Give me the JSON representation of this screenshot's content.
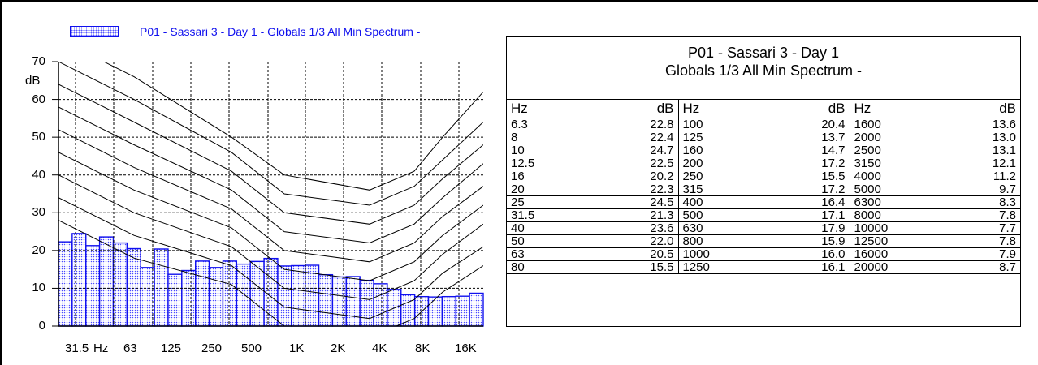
{
  "legend": {
    "label": "P01 - Sassari 3 - Day 1 - Globals 1/3 All Min Spectrum -"
  },
  "y_unit": "dB",
  "table": {
    "title_line1": "P01 - Sassari 3 - Day 1",
    "title_line2": "Globals 1/3 All Min Spectrum -",
    "headers": [
      "Hz",
      "dB",
      "Hz",
      "dB",
      "Hz",
      "dB"
    ],
    "rows": [
      [
        "6.3",
        "22.8",
        "100",
        "20.4",
        "1600",
        "13.6"
      ],
      [
        "8",
        "22.4",
        "125",
        "13.7",
        "2000",
        "13.0"
      ],
      [
        "10",
        "24.7",
        "160",
        "14.7",
        "2500",
        "13.1"
      ],
      [
        "12.5",
        "22.5",
        "200",
        "17.2",
        "3150",
        "12.1"
      ],
      [
        "16",
        "20.2",
        "250",
        "15.5",
        "4000",
        "11.2"
      ],
      [
        "20",
        "22.3",
        "315",
        "17.2",
        "5000",
        "9.7"
      ],
      [
        "25",
        "24.5",
        "400",
        "16.4",
        "6300",
        "8.3"
      ],
      [
        "31.5",
        "21.3",
        "500",
        "17.1",
        "8000",
        "7.8"
      ],
      [
        "40",
        "23.6",
        "630",
        "17.9",
        "10000",
        "7.7"
      ],
      [
        "50",
        "22.0",
        "800",
        "15.9",
        "12500",
        "7.8"
      ],
      [
        "63",
        "20.5",
        "1000",
        "16.0",
        "16000",
        "7.9"
      ],
      [
        "80",
        "15.5",
        "1250",
        "16.1",
        "20000",
        "8.7"
      ]
    ]
  },
  "chart_data": {
    "type": "bar",
    "title": "",
    "xlabel": "",
    "ylabel": "dB",
    "ylim": [
      0,
      70
    ],
    "y_ticks": [
      0,
      10,
      20,
      30,
      40,
      50,
      60,
      70
    ],
    "x_tick_labels": [
      "31.5",
      "Hz",
      "63",
      "125",
      "250",
      "500",
      "1K",
      "2K",
      "4K",
      "8K",
      "16K"
    ],
    "grid": true,
    "legend_position": "top-left",
    "bar_color": "#1010ee",
    "series": [
      {
        "name": "P01 - Sassari 3 - Day 1 - Globals 1/3 All Min Spectrum -",
        "categories": [
          "20",
          "25",
          "31.5",
          "40",
          "50",
          "63",
          "80",
          "100",
          "125",
          "160",
          "200",
          "250",
          "315",
          "400",
          "500",
          "630",
          "800",
          "1000",
          "1250",
          "1600",
          "2000",
          "2500",
          "3150",
          "4000",
          "5000",
          "6300",
          "8000",
          "10000",
          "12500",
          "16000",
          "20000"
        ],
        "values": [
          22.3,
          24.5,
          21.3,
          23.6,
          22.0,
          20.5,
          15.5,
          20.4,
          13.7,
          14.7,
          17.2,
          15.5,
          17.2,
          16.4,
          17.1,
          17.9,
          15.9,
          16.0,
          16.1,
          13.6,
          13.0,
          13.1,
          12.1,
          11.2,
          9.7,
          8.3,
          7.8,
          7.7,
          7.8,
          7.9,
          8.7
        ]
      }
    ],
    "reference_curves": [
      [
        76,
        66,
        50,
        40,
        36,
        41,
        50,
        62
      ],
      [
        70,
        60,
        46,
        35,
        32,
        37,
        44,
        54
      ],
      [
        64,
        54,
        41,
        30,
        27,
        32,
        39,
        48
      ],
      [
        58,
        48,
        36,
        25,
        22,
        27,
        34,
        43
      ],
      [
        52,
        42,
        31,
        20,
        17,
        22,
        29,
        37
      ],
      [
        46,
        36,
        26,
        15,
        12,
        17,
        24,
        32
      ],
      [
        40,
        30,
        21,
        10,
        7,
        12,
        19,
        27
      ],
      [
        34,
        24,
        16,
        5,
        2,
        7,
        14,
        21
      ],
      [
        28,
        18,
        11,
        0,
        -3,
        2,
        9,
        16
      ]
    ]
  }
}
